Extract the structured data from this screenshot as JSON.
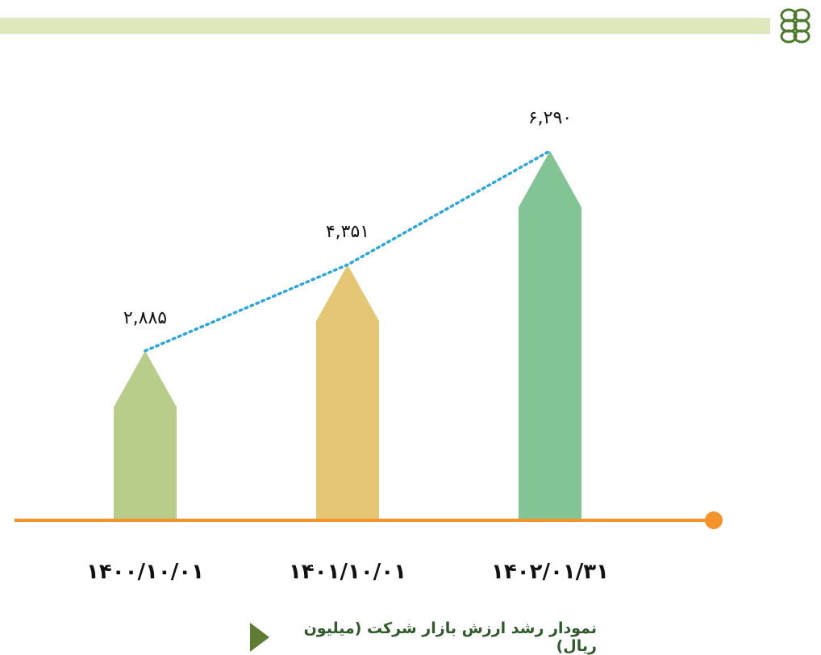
{
  "caption": "نمودار رشد ارزش بازار شرکت (میلیون ریال)",
  "colors": {
    "band": "#dde8bd",
    "axis": "#f4922c",
    "trend": "#2aa6dd",
    "caption_marker": "#5e7d33",
    "caption_text": "#2f5a2a",
    "logo": "#4e7a2f"
  },
  "chart_data": {
    "type": "bar",
    "categories": [
      "۱۴۰۰/۱۰/۰۱",
      "۱۴۰۱/۱۰/۰۱",
      "۱۴۰۲/۰۱/۳۱"
    ],
    "values": [
      2885,
      4351,
      6290
    ],
    "value_labels": [
      "۲,۸۸۵",
      "۴,۳۵۱",
      "۶,۲۹۰"
    ],
    "bar_colors": [
      "#b7cd89",
      "#e5c674",
      "#82c494"
    ],
    "trend_line": true,
    "ylim": [
      0,
      6290
    ],
    "grid": false,
    "legend": "none"
  }
}
